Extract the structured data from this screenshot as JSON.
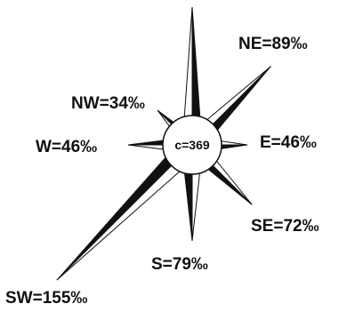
{
  "chart_data": {
    "type": "wind-rose",
    "center_label": "c=369",
    "directions": [
      {
        "dir": "N",
        "label": "",
        "value": null
      },
      {
        "dir": "NE",
        "label": "NE=89‰",
        "value": 89
      },
      {
        "dir": "E",
        "label": "E=46‰",
        "value": 46
      },
      {
        "dir": "SE",
        "label": "SE=72‰",
        "value": 72
      },
      {
        "dir": "S",
        "label": "S=79‰",
        "value": 79
      },
      {
        "dir": "SW",
        "label": "SW=155‰",
        "value": 155
      },
      {
        "dir": "W",
        "label": "W=46‰",
        "value": 46
      },
      {
        "dir": "NW",
        "label": "NW=34‰",
        "value": 34
      }
    ]
  },
  "colors": {
    "ink": "#111111",
    "paper": "#ffffff"
  }
}
